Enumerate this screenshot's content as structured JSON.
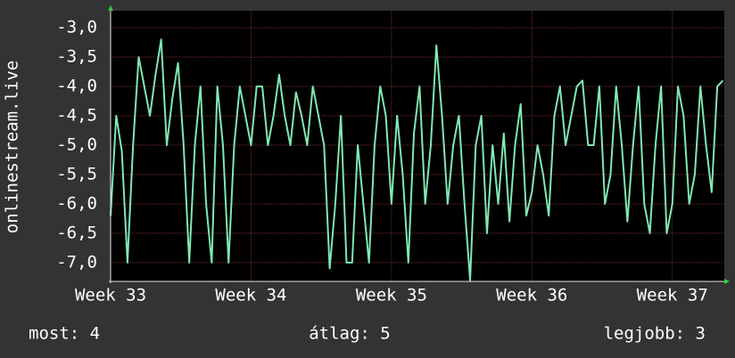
{
  "chart_data": {
    "type": "line",
    "y_label": "onlinestream.live",
    "xlim": [
      33,
      37.37
    ],
    "xticks": [
      {
        "value": 33,
        "label": "Week 33"
      },
      {
        "value": 34,
        "label": "Week 34"
      },
      {
        "value": 35,
        "label": "Week 35"
      },
      {
        "value": 36,
        "label": "Week 36"
      },
      {
        "value": 37,
        "label": "Week 37"
      }
    ],
    "ylim": [
      -7.32,
      -2.71
    ],
    "yticks": [
      {
        "value": -3,
        "label": "-3,0"
      },
      {
        "value": -3.5,
        "label": "-3,5"
      },
      {
        "value": -4,
        "label": "-4,0"
      },
      {
        "value": -4.5,
        "label": "-4,5"
      },
      {
        "value": -5,
        "label": "-5,0"
      },
      {
        "value": -5.5,
        "label": "-5,5"
      },
      {
        "value": -6,
        "label": "-6,0"
      },
      {
        "value": -6.5,
        "label": "-6,5"
      },
      {
        "value": -7,
        "label": "-7,0"
      }
    ],
    "grid": true,
    "x": [
      33,
      33.04,
      33.08,
      33.12,
      33.16,
      33.2,
      33.24,
      33.28,
      33.32,
      33.36,
      33.4,
      33.44,
      33.48,
      33.52,
      33.56,
      33.6,
      33.64,
      33.68,
      33.72,
      33.76,
      33.8,
      33.84,
      33.88,
      33.92,
      33.96,
      34,
      34.04,
      34.08,
      34.12,
      34.16,
      34.2,
      34.24,
      34.28,
      34.32,
      34.36,
      34.4,
      34.44,
      34.48,
      34.52,
      34.56,
      34.6,
      34.64,
      34.68,
      34.72,
      34.76,
      34.8,
      34.84,
      34.88,
      34.92,
      34.96,
      35,
      35.04,
      35.08,
      35.12,
      35.16,
      35.2,
      35.24,
      35.28,
      35.32,
      35.36,
      35.4,
      35.44,
      35.48,
      35.52,
      35.56,
      35.6,
      35.64,
      35.68,
      35.72,
      35.76,
      35.8,
      35.84,
      35.88,
      35.92,
      35.96,
      36,
      36.04,
      36.08,
      36.12,
      36.16,
      36.2,
      36.24,
      36.28,
      36.32,
      36.36,
      36.4,
      36.44,
      36.48,
      36.52,
      36.56,
      36.6,
      36.64,
      36.68,
      36.72,
      36.76,
      36.8,
      36.84,
      36.88,
      36.92,
      36.96,
      37,
      37.04,
      37.08,
      37.12,
      37.16,
      37.2,
      37.24,
      37.28,
      37.32,
      37.36
    ],
    "series": [
      {
        "color": "#7fe8b4",
        "values": [
          -6.2,
          -4.5,
          -5.1,
          -7.0,
          -5.0,
          -3.5,
          -4.0,
          -4.5,
          -3.8,
          -3.2,
          -5.0,
          -4.2,
          -3.6,
          -5.0,
          -7.0,
          -5.0,
          -4.0,
          -6.0,
          -7.0,
          -4.0,
          -5.0,
          -7.0,
          -5.0,
          -4.0,
          -4.5,
          -5.0,
          -4.0,
          -4.0,
          -5.0,
          -4.5,
          -3.8,
          -4.5,
          -5.0,
          -4.1,
          -4.5,
          -5.0,
          -4.0,
          -4.5,
          -5.0,
          -7.1,
          -6.0,
          -4.5,
          -7.0,
          -7.0,
          -5.0,
          -6.0,
          -7.0,
          -5.0,
          -4.0,
          -4.5,
          -6.0,
          -4.5,
          -5.5,
          -7.0,
          -4.8,
          -4.0,
          -6.0,
          -5.0,
          -3.3,
          -4.5,
          -6.0,
          -5.0,
          -4.5,
          -6.0,
          -7.3,
          -5.0,
          -4.5,
          -6.5,
          -5.0,
          -6.0,
          -4.8,
          -6.3,
          -5.0,
          -4.3,
          -6.2,
          -5.8,
          -5.0,
          -5.5,
          -6.2,
          -4.5,
          -4.0,
          -5.0,
          -4.5,
          -4.0,
          -3.9,
          -5.0,
          -5.0,
          -4.0,
          -6.0,
          -5.5,
          -4.0,
          -5.0,
          -6.3,
          -5.0,
          -4.0,
          -6.0,
          -6.5,
          -5.0,
          -4.0,
          -6.5,
          -6.0,
          -4.0,
          -4.5,
          -6.0,
          -5.5,
          -4.0,
          -5.0,
          -5.8,
          -4.0,
          -3.9
        ]
      }
    ],
    "footer": {
      "now": "most: 4",
      "average": "átlag: 5",
      "best": "legjobb: 3"
    }
  }
}
